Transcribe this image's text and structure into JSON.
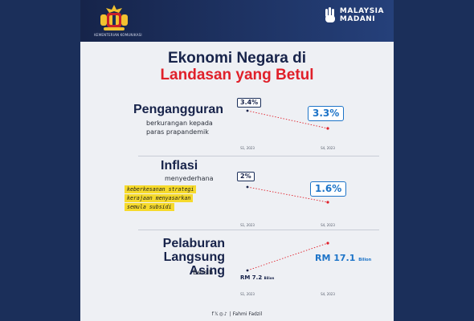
{
  "header": {
    "ministry_text": "KEMENTERIAN KOMUNIKASI",
    "brand_line1": "MALAYSIA",
    "brand_line2": "MADANI"
  },
  "headline": {
    "line1": "Ekonomi Negara di",
    "line2": "Landasan yang Betul"
  },
  "colors": {
    "navy": "#17234a",
    "red": "#e0202a",
    "blue": "#1d74c8",
    "highlight": "#f6da2c"
  },
  "sections": [
    {
      "title_lines": [
        "Pengangguran"
      ],
      "subtitle_lines": [
        "berkurangan kepada",
        "paras prapandemik"
      ],
      "before_label": "3.4%",
      "after_label": "3.3%",
      "before_value": 3.4,
      "after_value": 3.3,
      "x_labels": [
        "S1, 2023",
        "S4, 2023"
      ]
    },
    {
      "title_lines": [
        "Inflasi"
      ],
      "subtitle_lines": [
        "menyederhana"
      ],
      "note_lines": [
        "keberkesanan strategi",
        "kerajaan menyasarkan",
        "semula subsidi"
      ],
      "before_label": "2%",
      "after_label": "1.6%",
      "before_value": 2,
      "after_value": 1.6,
      "x_labels": [
        "S1, 2023",
        "S4, 2023"
      ]
    },
    {
      "title_lines": [
        "Pelaburan",
        "Langsung Asing"
      ],
      "subtitle_lines": [
        "Bersih"
      ],
      "before_label": "RM 7.2",
      "before_unit": "Bilion",
      "after_label": "RM 17.1",
      "after_unit": "Bilion",
      "before_value": 7.2,
      "after_value": 17.1,
      "x_labels": [
        "S1, 2023",
        "S4, 2023"
      ]
    }
  ],
  "footer": {
    "icons": [
      "facebook-icon",
      "x-icon",
      "instagram-icon",
      "tiktok-icon"
    ],
    "author": "| Fahmi Fadzil"
  }
}
